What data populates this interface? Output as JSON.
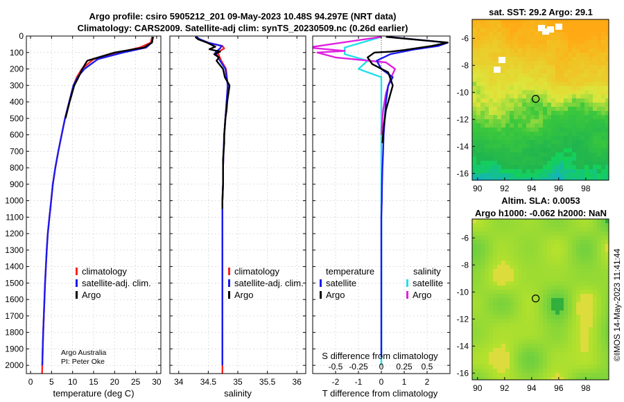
{
  "title_line1": "Argo profile: csiro 5905212_201 09-May-2023 10.48S 94.297E (NRT data)",
  "title_line2": "Climatology: CARS2009. Satellite-adj clim: synTS_20230509.nc (0.26d earlier)",
  "sst_title": "sat. SST: 29.2 Argo: 29.1",
  "sla_title1": "Altim. SLA: 0.0053",
  "sla_title2": "Argo h1000: -0.062 h2000: NaN",
  "side_label": "©IMOS 14-May-2023 11:41:44",
  "credit1": "Argo Australia",
  "credit2": "PI: Peter Oke",
  "colors": {
    "climatology": "#ff2020",
    "satellite": "#1a1aee",
    "argo": "#000000",
    "sat_s": "#22e0e8",
    "argo_s": "#e020e0"
  },
  "chart_data": [
    {
      "type": "line",
      "id": "temperature",
      "xlabel": "temperature (deg C)",
      "ylabel": "depth",
      "xlim": [
        -1,
        31
      ],
      "ylim": [
        2050,
        0
      ],
      "xticks": [
        0,
        5,
        10,
        15,
        20,
        25,
        30
      ],
      "yticks": [
        0,
        100,
        200,
        300,
        400,
        500,
        600,
        700,
        800,
        900,
        1000,
        1100,
        1200,
        1300,
        1400,
        1500,
        1600,
        1700,
        1800,
        1900,
        2000
      ],
      "legend": {
        "placement": "center-right",
        "entries": [
          "climatology",
          "satellite-adj. clim.",
          "Argo"
        ]
      },
      "series": [
        {
          "name": "climatology",
          "color_key": "climatology",
          "x": [
            28.9,
            28.6,
            26,
            21,
            15,
            12.2,
            11,
            10.2,
            9.2,
            8.2,
            7.4,
            6.6,
            5.9,
            5.3,
            4.9,
            4.5,
            4.1,
            3.85,
            3.65,
            3.45,
            3.3,
            3.15,
            3.0,
            2.9,
            2.8,
            2.75
          ],
          "depth": [
            5,
            40,
            70,
            100,
            140,
            200,
            250,
            300,
            400,
            500,
            600,
            700,
            800,
            900,
            1000,
            1100,
            1200,
            1300,
            1400,
            1500,
            1600,
            1700,
            1800,
            1900,
            2000,
            2050
          ]
        },
        {
          "name": "satellite-adj. clim.",
          "color_key": "satellite",
          "x": [
            29.2,
            28.8,
            27.5,
            22,
            16,
            12.8,
            11.2,
            10.2,
            9.2,
            8.2,
            7.4,
            6.6,
            5.9,
            5.3,
            4.9,
            4.5,
            4.1,
            3.85,
            3.65,
            3.45,
            3.3,
            3.15,
            3.0,
            2.9,
            2.8
          ],
          "depth": [
            5,
            40,
            70,
            100,
            140,
            200,
            250,
            300,
            400,
            500,
            600,
            700,
            800,
            900,
            1000,
            1100,
            1200,
            1300,
            1400,
            1500,
            1600,
            1700,
            1800,
            1900,
            2000
          ]
        },
        {
          "name": "Argo",
          "color_key": "argo",
          "x": [
            29.1,
            28.9,
            27,
            20,
            13.5,
            12.3,
            11.4,
            10.4,
            9.3,
            8.3
          ],
          "depth": [
            5,
            40,
            70,
            100,
            150,
            200,
            250,
            300,
            400,
            500
          ]
        }
      ]
    },
    {
      "type": "line",
      "id": "salinity",
      "xlabel": "salinity",
      "ylabel": "depth",
      "xlim": [
        33.85,
        36.15
      ],
      "ylim": [
        2050,
        0
      ],
      "xticks": [
        34,
        34.5,
        35,
        35.5,
        36
      ],
      "legend": {
        "placement": "center-right",
        "entries": [
          "climatology",
          "satellite-adj. clim.",
          "Argo"
        ]
      },
      "series": [
        {
          "name": "climatology",
          "color_key": "climatology",
          "x": [
            34.3,
            34.35,
            34.48,
            34.74,
            34.77,
            34.66,
            34.72,
            34.8,
            34.83,
            34.81,
            34.79,
            34.77,
            34.76,
            34.75,
            34.75,
            34.74,
            34.74,
            34.74,
            34.74,
            34.74,
            34.74,
            34.74,
            34.74,
            34.74,
            34.74
          ],
          "depth": [
            5,
            20,
            40,
            60,
            75,
            100,
            150,
            200,
            300,
            400,
            500,
            600,
            700,
            800,
            900,
            1000,
            1100,
            1200,
            1300,
            1400,
            1500,
            1600,
            1800,
            2000,
            2050
          ]
        },
        {
          "name": "satellite-adj. clim.",
          "color_key": "satellite",
          "x": [
            34.3,
            34.36,
            34.5,
            34.73,
            34.7,
            34.62,
            34.7,
            34.79,
            34.83,
            34.81,
            34.79,
            34.77,
            34.76,
            34.75,
            34.75,
            34.74,
            34.74,
            34.74,
            34.74,
            34.74,
            34.74,
            34.74,
            34.74
          ],
          "depth": [
            5,
            20,
            40,
            60,
            75,
            100,
            150,
            200,
            300,
            400,
            500,
            600,
            700,
            800,
            900,
            1000,
            1100,
            1200,
            1300,
            1400,
            1500,
            1800,
            2000
          ]
        },
        {
          "name": "Argo",
          "color_key": "argo",
          "x": [
            34.28,
            34.33,
            34.48,
            34.62,
            34.52,
            34.7,
            34.6,
            34.68,
            34.64,
            34.75,
            34.78,
            34.86,
            34.84,
            34.82,
            34.81,
            34.79,
            34.78,
            34.77,
            34.77,
            34.76,
            34.75,
            34.75,
            34.75,
            34.74,
            34.74
          ],
          "depth": [
            5,
            20,
            40,
            65,
            80,
            95,
            110,
            130,
            150,
            200,
            250,
            300,
            350,
            400,
            450,
            500,
            550,
            600,
            650,
            700,
            750,
            800,
            900,
            1000,
            1050
          ]
        }
      ]
    },
    {
      "type": "line",
      "id": "difference",
      "xlabel": "T difference from climatology",
      "xlabel2": "S difference from climatology",
      "xlim": [
        -3,
        3
      ],
      "ylim": [
        2050,
        0
      ],
      "xticks": [
        -2,
        -1,
        0,
        1,
        2
      ],
      "s_ticks": [
        -0.5,
        -0.25,
        0,
        0.25,
        0.5
      ],
      "legend": {
        "placement": "center",
        "entries_left": [
          "temperature",
          "satellite",
          "Argo"
        ],
        "entries_right": [
          "salinity",
          "satellite",
          "Argo"
        ]
      },
      "series": [
        {
          "name": "T satellite",
          "color_key": "satellite",
          "x": [
            0.3,
            2.9,
            2.5,
            1.5,
            0.4,
            -0.2,
            0,
            0.5,
            0.3,
            0.2,
            0.15,
            0.1,
            0.08,
            0.05,
            0.03,
            0.02,
            0,
            0,
            0,
            0,
            0,
            0
          ],
          "depth": [
            5,
            40,
            60,
            80,
            110,
            150,
            200,
            250,
            300,
            400,
            500,
            600,
            700,
            800,
            900,
            1000,
            1100,
            1200,
            1300,
            1500,
            1800,
            1950
          ]
        },
        {
          "name": "T Argo",
          "color_key": "argo",
          "x": [
            0.2,
            2.9,
            2.2,
            1,
            0.4,
            -0.3,
            -0.6,
            -0.4,
            0.3,
            0.5,
            0.4,
            0.3,
            0.2,
            0.15,
            0.1,
            0.05
          ],
          "depth": [
            5,
            40,
            60,
            85,
            95,
            100,
            130,
            170,
            220,
            300,
            350,
            400,
            450,
            500,
            550,
            650
          ]
        },
        {
          "name": "S satellite",
          "color_key": "sat_s",
          "x": [
            0,
            -0.4,
            -0.4,
            -0.15,
            -0.25,
            0,
            0,
            0,
            0,
            0,
            0,
            0
          ],
          "depth": [
            5,
            70,
            110,
            150,
            200,
            250,
            400,
            800,
            1200,
            1600,
            1900,
            2000
          ]
        },
        {
          "name": "S Argo",
          "color_key": "argo_s",
          "x": [
            0,
            -0.8,
            -0.4,
            -0.7,
            -0.5,
            0.05,
            0.15,
            0.1,
            0.05,
            0.02,
            0
          ],
          "depth": [
            5,
            70,
            90,
            100,
            130,
            160,
            200,
            260,
            350,
            450,
            600
          ]
        }
      ]
    },
    {
      "type": "heatmap",
      "id": "sst",
      "xlim": [
        89.6,
        99.7
      ],
      "ylim": [
        -16.5,
        -4.6
      ],
      "xticks": [
        90,
        92,
        94,
        96,
        98
      ],
      "yticks": [
        -6,
        -8,
        -10,
        -12,
        -14,
        -16
      ],
      "marker": {
        "lon": 94.297,
        "lat": -10.48
      }
    },
    {
      "type": "heatmap",
      "id": "sla",
      "xlim": [
        89.6,
        99.7
      ],
      "ylim": [
        -16.5,
        -4.6
      ],
      "xticks": [
        90,
        92,
        94,
        96,
        98
      ],
      "yticks": [
        -6,
        -8,
        -10,
        -12,
        -14,
        -16
      ],
      "marker": {
        "lon": 94.297,
        "lat": -10.48
      }
    }
  ]
}
